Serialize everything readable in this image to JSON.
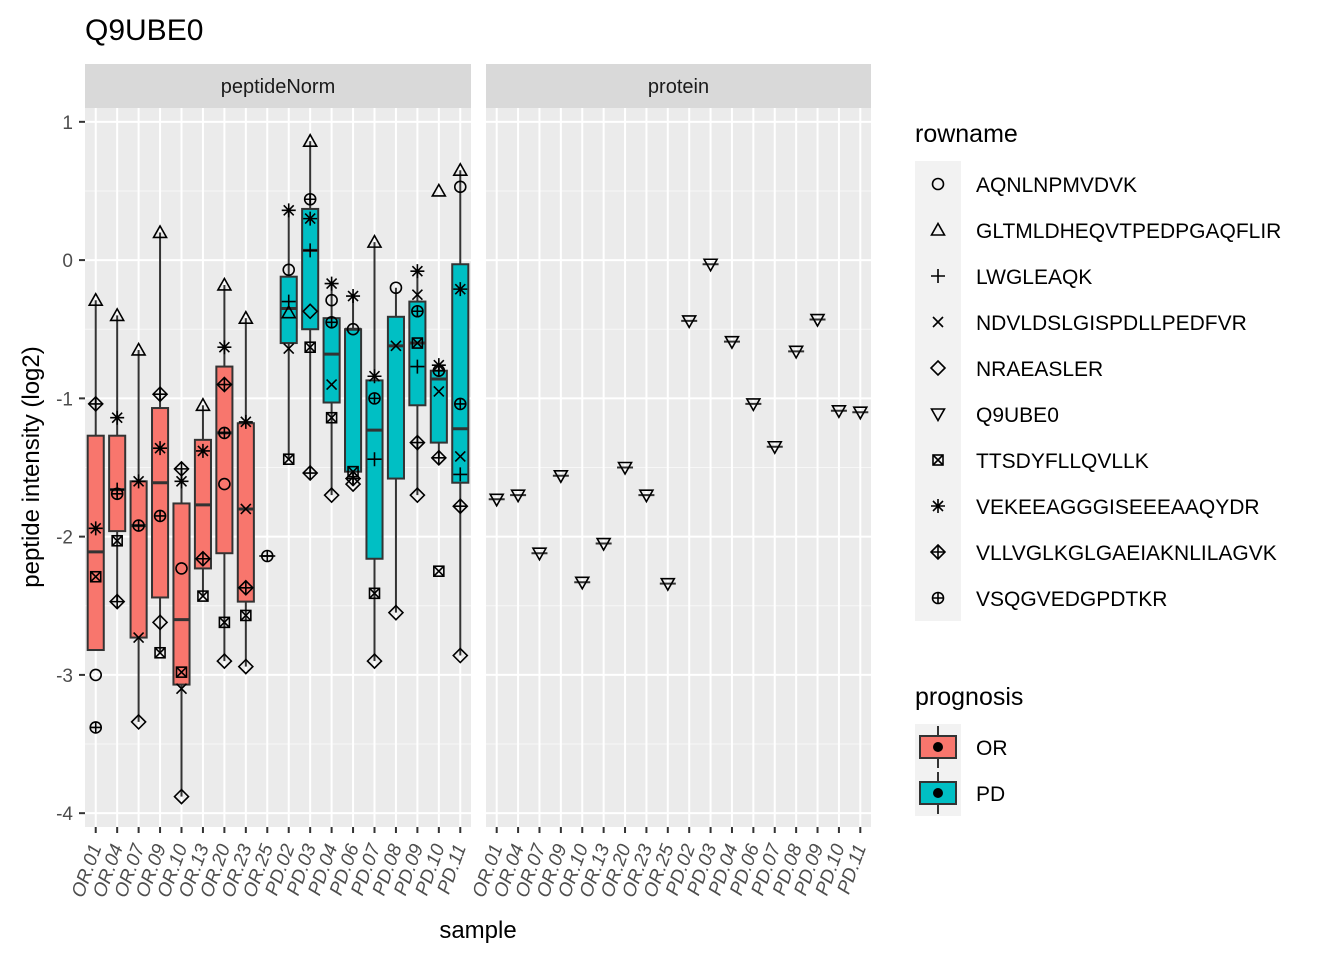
{
  "chart_data": {
    "type": "box",
    "title": "Q9UBE0",
    "xlabel": "sample",
    "ylabel": "peptide intensity (log2)",
    "ylim": [
      -4.1,
      1.1
    ],
    "yticks": [
      1,
      0,
      -1,
      -2,
      -3,
      -4
    ],
    "ytick_labels": [
      "1",
      "0",
      "-1",
      "-2",
      "-3",
      "-4"
    ],
    "grid": true,
    "facets": [
      "peptideNorm",
      "protein"
    ],
    "samples": [
      "OR.01",
      "OR.04",
      "OR.07",
      "OR.09",
      "OR.10",
      "OR.13",
      "OR.20",
      "OR.23",
      "OR.25",
      "PD.02",
      "PD.03",
      "PD.04",
      "PD.06",
      "PD.07",
      "PD.08",
      "PD.09",
      "PD.10",
      "PD.11"
    ],
    "legend_shape": {
      "title": "rowname",
      "entries": [
        {
          "name": "AQNLNPMVDVK",
          "shape": "circle"
        },
        {
          "name": "GLTMLDHEQVTPEDPGAQFLIR",
          "shape": "triangle-up"
        },
        {
          "name": "LWGLEAQK",
          "shape": "plus"
        },
        {
          "name": "NDVLDSLGISPDLLPEDFVR",
          "shape": "cross"
        },
        {
          "name": "NRAEASLER",
          "shape": "diamond"
        },
        {
          "name": "Q9UBE0",
          "shape": "triangle-down"
        },
        {
          "name": "TTSDYFLLQVLLK",
          "shape": "square-cross"
        },
        {
          "name": "VEKEEAGGGISEEEAAQYDR",
          "shape": "asterisk"
        },
        {
          "name": "VLLVGLKGLGAEIAKNLILAGVK",
          "shape": "diamond-plus"
        },
        {
          "name": "VSQGVEDGPDTKR",
          "shape": "circle-plus"
        }
      ]
    },
    "legend_fill": {
      "title": "prognosis",
      "entries": [
        {
          "name": "OR",
          "color": "#F8766D"
        },
        {
          "name": "PD",
          "color": "#00BFC4"
        }
      ]
    },
    "peptideNorm": [
      {
        "sample": "OR.01",
        "group": "OR",
        "box": {
          "min": -2.82,
          "q1": -2.82,
          "median": -2.11,
          "q3": -1.27,
          "max": -0.29
        },
        "points": {
          "AQNLNPMVDVK": -3.0,
          "GLTMLDHEQVTPEDPGAQFLIR": -0.29,
          "TTSDYFLLQVLLK": -2.29,
          "VEKEEAGGGISEEEAAQYDR": -1.94,
          "VLLVGLKGLGAEIAKNLILAGVK": -1.04,
          "VSQGVEDGPDTKR": -3.38
        }
      },
      {
        "sample": "OR.04",
        "group": "OR",
        "box": {
          "min": -2.47,
          "q1": -1.96,
          "median": -1.66,
          "q3": -1.27,
          "max": -0.4
        },
        "points": {
          "GLTMLDHEQVTPEDPGAQFLIR": -0.4,
          "TTSDYFLLQVLLK": -2.03,
          "VEKEEAGGGISEEEAAQYDR": -1.14,
          "VLLVGLKGLGAEIAKNLILAGVK": -2.47,
          "VSQGVEDGPDTKR": -1.69,
          "LWGLEAQK": -1.66
        }
      },
      {
        "sample": "OR.07",
        "group": "OR",
        "box": {
          "min": -3.34,
          "q1": -2.73,
          "median": -1.92,
          "q3": -1.6,
          "max": -0.65
        },
        "points": {
          "GLTMLDHEQVTPEDPGAQFLIR": -0.65,
          "NRAEASLER": -3.34,
          "NDVLDSLGISPDLLPEDFVR": -2.73,
          "VEKEEAGGGISEEEAAQYDR": -1.6,
          "VSQGVEDGPDTKR": -1.92
        }
      },
      {
        "sample": "OR.09",
        "group": "OR",
        "box": {
          "min": -2.84,
          "q1": -2.44,
          "median": -1.61,
          "q3": -1.07,
          "max": 0.2
        },
        "points": {
          "GLTMLDHEQVTPEDPGAQFLIR": 0.2,
          "VLLVGLKGLGAEIAKNLILAGVK": -0.97,
          "VEKEEAGGGISEEEAAQYDR": -1.36,
          "VSQGVEDGPDTKR": -1.85,
          "NRAEASLER": -2.62,
          "TTSDYFLLQVLLK": -2.84
        }
      },
      {
        "sample": "OR.10",
        "group": "OR",
        "box": {
          "min": -3.88,
          "q1": -3.07,
          "median": -2.6,
          "q3": -1.76,
          "max": -1.51
        },
        "points": {
          "VLLVGLKGLGAEIAKNLILAGVK": -1.51,
          "VEKEEAGGGISEEEAAQYDR": -1.6,
          "AQNLNPMVDVK": -2.23,
          "TTSDYFLLQVLLK": -2.98,
          "NDVLDSLGISPDLLPEDFVR": -3.1,
          "NRAEASLER": -3.88
        }
      },
      {
        "sample": "OR.13",
        "group": "OR",
        "box": {
          "min": -2.43,
          "q1": -2.23,
          "median": -1.77,
          "q3": -1.3,
          "max": -1.05
        },
        "points": {
          "GLTMLDHEQVTPEDPGAQFLIR": -1.05,
          "VEKEEAGGGISEEEAAQYDR": -1.38,
          "VLLVGLKGLGAEIAKNLILAGVK": -2.16,
          "TTSDYFLLQVLLK": -2.43
        }
      },
      {
        "sample": "OR.20",
        "group": "OR",
        "box": {
          "min": -2.9,
          "q1": -2.12,
          "median": -1.25,
          "q3": -0.77,
          "max": -0.18
        },
        "points": {
          "GLTMLDHEQVTPEDPGAQFLIR": -0.18,
          "VEKEEAGGGISEEEAAQYDR": -0.63,
          "VLLVGLKGLGAEIAKNLILAGVK": -0.9,
          "VSQGVEDGPDTKR": -1.25,
          "AQNLNPMVDVK": -1.62,
          "TTSDYFLLQVLLK": -2.62,
          "NRAEASLER": -2.9
        }
      },
      {
        "sample": "OR.23",
        "group": "OR",
        "box": {
          "min": -2.94,
          "q1": -2.47,
          "median": -1.8,
          "q3": -1.18,
          "max": -0.42
        },
        "points": {
          "GLTMLDHEQVTPEDPGAQFLIR": -0.42,
          "VEKEEAGGGISEEEAAQYDR": -1.17,
          "NDVLDSLGISPDLLPEDFVR": -1.8,
          "VLLVGLKGLGAEIAKNLILAGVK": -2.37,
          "TTSDYFLLQVLLK": -2.57,
          "NRAEASLER": -2.94
        }
      },
      {
        "sample": "OR.25",
        "group": "OR",
        "box": null,
        "points": {
          "VSQGVEDGPDTKR": -2.14
        }
      },
      {
        "sample": "PD.02",
        "group": "PD",
        "box": {
          "min": -1.44,
          "q1": -0.6,
          "median": -0.35,
          "q3": -0.12,
          "max": 0.36
        },
        "points": {
          "VEKEEAGGGISEEEAAQYDR": 0.36,
          "AQNLNPMVDVK": -0.07,
          "LWGLEAQK": -0.3,
          "GLTMLDHEQVTPEDPGAQFLIR": -0.38,
          "NDVLDSLGISPDLLPEDFVR": -0.64,
          "TTSDYFLLQVLLK": -1.44
        }
      },
      {
        "sample": "PD.03",
        "group": "PD",
        "box": {
          "min": -1.54,
          "q1": -0.5,
          "median": 0.07,
          "q3": 0.37,
          "max": 0.86
        },
        "points": {
          "GLTMLDHEQVTPEDPGAQFLIR": 0.86,
          "VSQGVEDGPDTKR": 0.44,
          "VEKEEAGGGISEEEAAQYDR": 0.3,
          "LWGLEAQK": 0.07,
          "NRAEASLER": -0.37,
          "TTSDYFLLQVLLK": -0.63,
          "VLLVGLKGLGAEIAKNLILAGVK": -1.54
        }
      },
      {
        "sample": "PD.04",
        "group": "PD",
        "box": {
          "min": -1.7,
          "q1": -1.03,
          "median": -0.68,
          "q3": -0.42,
          "max": -0.17
        },
        "points": {
          "VEKEEAGGGISEEEAAQYDR": -0.17,
          "AQNLNPMVDVK": -0.29,
          "VSQGVEDGPDTKR": -0.45,
          "NDVLDSLGISPDLLPEDFVR": -0.9,
          "TTSDYFLLQVLLK": -1.14,
          "NRAEASLER": -1.7
        }
      },
      {
        "sample": "PD.06",
        "group": "PD",
        "box": {
          "min": -1.62,
          "q1": -1.53,
          "median": -0.5,
          "q3": -0.5,
          "max": -0.26
        },
        "points": {
          "VEKEEAGGGISEEEAAQYDR": -0.26,
          "NRAEASLER": -1.62,
          "TTSDYFLLQVLLK": -1.53,
          "VLLVGLKGLGAEIAKNLILAGVK": -1.58,
          "AQNLNPMVDVK": -0.5
        }
      },
      {
        "sample": "PD.07",
        "group": "PD",
        "box": {
          "min": -2.9,
          "q1": -2.16,
          "median": -1.23,
          "q3": -0.87,
          "max": 0.13
        },
        "points": {
          "GLTMLDHEQVTPEDPGAQFLIR": 0.13,
          "VEKEEAGGGISEEEAAQYDR": -0.84,
          "VSQGVEDGPDTKR": -1.0,
          "LWGLEAQK": -1.44,
          "TTSDYFLLQVLLK": -2.41,
          "NRAEASLER": -2.9
        }
      },
      {
        "sample": "PD.08",
        "group": "PD",
        "box": {
          "min": -2.55,
          "q1": -1.58,
          "median": -0.62,
          "q3": -0.41,
          "max": -0.2
        },
        "points": {
          "AQNLNPMVDVK": -0.2,
          "NDVLDSLGISPDLLPEDFVR": -0.62,
          "NRAEASLER": -2.55
        }
      },
      {
        "sample": "PD.09",
        "group": "PD",
        "box": {
          "min": -1.7,
          "q1": -1.05,
          "median": -0.6,
          "q3": -0.3,
          "max": -0.08
        },
        "points": {
          "VEKEEAGGGISEEEAAQYDR": -0.08,
          "NDVLDSLGISPDLLPEDFVR": -0.25,
          "VSQGVEDGPDTKR": -0.37,
          "TTSDYFLLQVLLK": -0.6,
          "LWGLEAQK": -0.77,
          "VLLVGLKGLGAEIAKNLILAGVK": -1.32,
          "NRAEASLER": -1.7
        }
      },
      {
        "sample": "PD.10",
        "group": "PD",
        "box": {
          "min": -1.43,
          "q1": -1.32,
          "median": -0.86,
          "q3": -0.8,
          "max": -0.76
        },
        "points": {
          "GLTMLDHEQVTPEDPGAQFLIR": 0.5,
          "VEKEEAGGGISEEEAAQYDR": -0.76,
          "VSQGVEDGPDTKR": -0.8,
          "NDVLDSLGISPDLLPEDFVR": -0.95,
          "VLLVGLKGLGAEIAKNLILAGVK": -1.43,
          "TTSDYFLLQVLLK": -2.25
        }
      },
      {
        "sample": "PD.11",
        "group": "PD",
        "box": {
          "min": -2.86,
          "q1": -1.61,
          "median": -1.22,
          "q3": -0.03,
          "max": 0.65
        },
        "points": {
          "GLTMLDHEQVTPEDPGAQFLIR": 0.65,
          "AQNLNPMVDVK": 0.53,
          "VEKEEAGGGISEEEAAQYDR": -0.21,
          "VSQGVEDGPDTKR": -1.04,
          "NDVLDSLGISPDLLPEDFVR": -1.42,
          "LWGLEAQK": -1.55,
          "VLLVGLKGLGAEIAKNLILAGVK": -1.78,
          "NRAEASLER": -2.86
        }
      }
    ],
    "protein": [
      {
        "sample": "OR.01",
        "group": "OR",
        "value": -1.73
      },
      {
        "sample": "OR.04",
        "group": "OR",
        "value": -1.7
      },
      {
        "sample": "OR.07",
        "group": "OR",
        "value": -2.12
      },
      {
        "sample": "OR.09",
        "group": "OR",
        "value": -1.56
      },
      {
        "sample": "OR.10",
        "group": "OR",
        "value": -2.33
      },
      {
        "sample": "OR.13",
        "group": "OR",
        "value": -2.05
      },
      {
        "sample": "OR.20",
        "group": "OR",
        "value": -1.5
      },
      {
        "sample": "OR.23",
        "group": "OR",
        "value": -1.7
      },
      {
        "sample": "OR.25",
        "group": "OR",
        "value": -2.34
      },
      {
        "sample": "PD.02",
        "group": "PD",
        "value": -0.44
      },
      {
        "sample": "PD.03",
        "group": "PD",
        "value": -0.03
      },
      {
        "sample": "PD.04",
        "group": "PD",
        "value": -0.59
      },
      {
        "sample": "PD.06",
        "group": "PD",
        "value": -1.04
      },
      {
        "sample": "PD.07",
        "group": "PD",
        "value": -1.35
      },
      {
        "sample": "PD.08",
        "group": "PD",
        "value": -0.66
      },
      {
        "sample": "PD.09",
        "group": "PD",
        "value": -0.43
      },
      {
        "sample": "PD.10",
        "group": "PD",
        "value": -1.09
      },
      {
        "sample": "PD.11",
        "group": "PD",
        "value": -1.1
      }
    ]
  }
}
